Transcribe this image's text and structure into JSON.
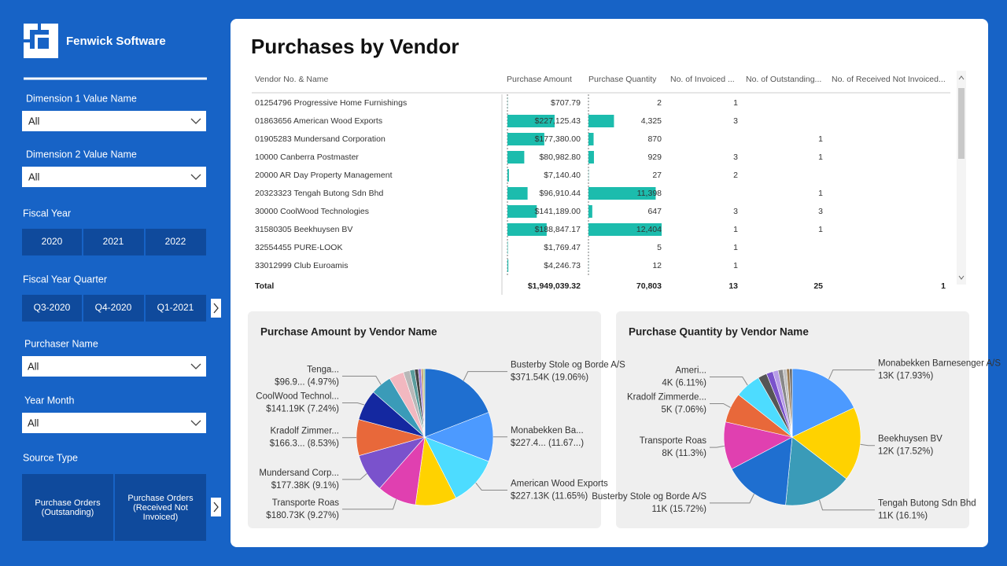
{
  "sidebar": {
    "brand": "Fenwick Software",
    "dimension1": {
      "label": "Dimension 1 Value Name",
      "selected": "All"
    },
    "dimension2": {
      "label": "Dimension 2 Value Name",
      "selected": "All"
    },
    "fiscal_year": {
      "label": "Fiscal Year",
      "options": [
        "2020",
        "2021",
        "2022"
      ]
    },
    "fiscal_quarter": {
      "label": "Fiscal Year Quarter",
      "options": [
        "Q3-2020",
        "Q4-2020",
        "Q1-2021"
      ]
    },
    "purchaser": {
      "label": "Purchaser Name",
      "selected": "All"
    },
    "year_month": {
      "label": "Year Month",
      "selected": "All"
    },
    "source_type": {
      "label": "Source Type",
      "options": [
        "Purchase Orders (Outstanding)",
        "Purchase Orders (Received Not Invoiced)"
      ]
    }
  },
  "report": {
    "title": "Purchases by Vendor",
    "table": {
      "columns": [
        "Vendor No. & Name",
        "Purchase Amount",
        "Purchase Quantity",
        "No. of Invoiced ...",
        "No. of Outstanding...",
        "No. of Received Not Invoiced..."
      ],
      "rows": [
        {
          "vendor": "01254796 Progressive Home Furnishings",
          "amount": 707.79,
          "amount_label": "$707.79",
          "quantity": 2,
          "invoiced": 1,
          "outstanding": null,
          "received": null
        },
        {
          "vendor": "01863656 American Wood Exports",
          "amount": 227125.43,
          "amount_label": "$227,125.43",
          "quantity": 4325,
          "quantity_label": "4,325",
          "invoiced": 3,
          "outstanding": null,
          "received": null
        },
        {
          "vendor": "01905283 Mundersand Corporation",
          "amount": 177380.0,
          "amount_label": "$177,380.00",
          "quantity": 870,
          "invoiced": null,
          "outstanding": 1,
          "received": null
        },
        {
          "vendor": "10000 Canberra Postmaster",
          "amount": 80982.8,
          "amount_label": "$80,982.80",
          "quantity": 929,
          "invoiced": 3,
          "outstanding": 1,
          "received": null
        },
        {
          "vendor": "20000 AR Day Property Management",
          "amount": 7140.4,
          "amount_label": "$7,140.40",
          "quantity": 27,
          "invoiced": 2,
          "outstanding": null,
          "received": null
        },
        {
          "vendor": "20323323 Tengah Butong Sdn Bhd",
          "amount": 96910.44,
          "amount_label": "$96,910.44",
          "quantity": 11398,
          "quantity_label": "11,398",
          "invoiced": null,
          "outstanding": 1,
          "received": null
        },
        {
          "vendor": "30000 CoolWood Technologies",
          "amount": 141189.0,
          "amount_label": "$141,189.00",
          "quantity": 647,
          "invoiced": 3,
          "outstanding": 3,
          "received": null
        },
        {
          "vendor": "31580305 Beekhuysen BV",
          "amount": 188847.17,
          "amount_label": "$188,847.17",
          "quantity": 12404,
          "quantity_label": "12,404",
          "invoiced": 1,
          "outstanding": 1,
          "received": null
        },
        {
          "vendor": "32554455 PURE-LOOK",
          "amount": 1769.47,
          "amount_label": "$1,769.47",
          "quantity": 5,
          "invoiced": 1,
          "outstanding": null,
          "received": null
        },
        {
          "vendor": "33012999 Club Euroamis",
          "amount": 4246.73,
          "amount_label": "$4,246.73",
          "quantity": 12,
          "invoiced": 1,
          "outstanding": null,
          "received": null
        }
      ],
      "total": {
        "label": "Total",
        "amount": "$1,949,039.32",
        "quantity": "70,803",
        "invoiced": 13,
        "outstanding": 25,
        "received": 1
      }
    }
  },
  "charts": [
    {
      "type": "pie",
      "title": "Purchase Amount by Vendor Name",
      "categories": [
        "Busterby Stole og Borde A/S",
        "Monabekken Ba...",
        "American Wood Exports",
        null,
        "Transporte Roas",
        "Mundersand Corp...",
        "Kradolf Zimmer...",
        "CoolWood Technol...",
        "Tenga...",
        null,
        null,
        null,
        null,
        null,
        null,
        null
      ],
      "values": [
        371540,
        227450,
        227130,
        188847.17,
        180730,
        177380,
        166300,
        141190,
        96900,
        68000,
        30000,
        22000,
        17000,
        13000,
        10000,
        7000
      ],
      "value_labels": [
        "$371.54K (19.06%)",
        "$227.4... (11.67...)",
        "$227.13K (11.65%)",
        null,
        "$180.73K (9.27%)",
        "$177.38K (9.1%)",
        "$166.3... (8.53%)",
        "$141.19K (7.24%)",
        "$96.9... (4.97%)",
        null,
        null,
        null,
        null,
        null,
        null,
        null
      ],
      "colors": [
        "#1f6fd0",
        "#4c9aff",
        "#4ddcff",
        "#ffd200",
        "#e040b0",
        "#7a52cc",
        "#e8683a",
        "#1428a0",
        "#3a9bb8",
        "#f2b8c0",
        "#b8b8b8",
        "#5a9c9c",
        "#444444",
        "#9a7ad8",
        "#c8a070",
        "#8fbf6f"
      ]
    },
    {
      "type": "pie",
      "title": "Purchase Quantity by Vendor Name",
      "categories": [
        "Monabekken Barnesenger A/S",
        "Beekhuysen BV",
        "Tengah Butong Sdn Bhd",
        "Busterby Stole og Borde A/S",
        "Transporte Roas",
        "Kradolf Zimmerde...",
        "Ameri...",
        null,
        null,
        null,
        null,
        null,
        null,
        null
      ],
      "values": [
        12695,
        12404,
        11398,
        11130,
        8001,
        4999,
        4325,
        1500,
        1100,
        900,
        800,
        600,
        500,
        448
      ],
      "value_labels": [
        "13K (17.93%)",
        "12K (17.52%)",
        "11K (16.1%)",
        "11K (15.72%)",
        "8K (11.3%)",
        "5K (7.06%)",
        "4K (6.11%)",
        null,
        null,
        null,
        null,
        null,
        null,
        null
      ],
      "colors": [
        "#4c9aff",
        "#ffd200",
        "#3a9bb8",
        "#1f6fd0",
        "#e040b0",
        "#e8683a",
        "#4ddcff",
        "#555555",
        "#7a52cc",
        "#b79ce8",
        "#888888",
        "#c0c0c0",
        "#9a7a50",
        "#6a6a6a"
      ]
    }
  ]
}
